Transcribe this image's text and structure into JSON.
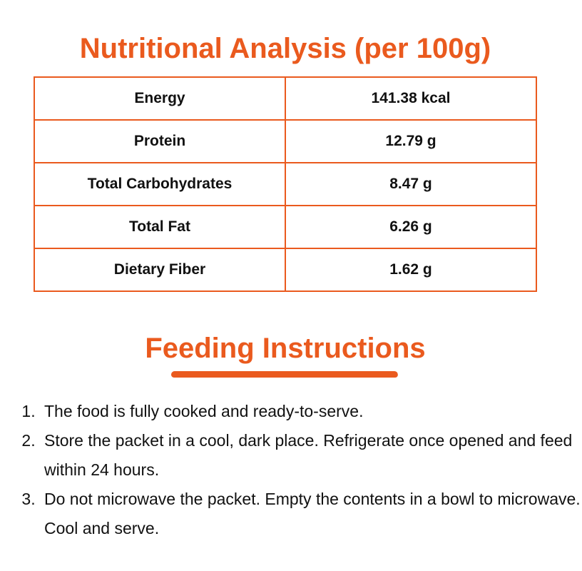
{
  "nutrition": {
    "title": "Nutritional Analysis (per 100g)",
    "rows": [
      {
        "label": "Energy",
        "value": "141.38 kcal"
      },
      {
        "label": "Protein",
        "value": "12.79 g"
      },
      {
        "label": "Total Carbohydrates",
        "value": "8.47 g"
      },
      {
        "label": "Total Fat",
        "value": "6.26 g"
      },
      {
        "label": "Dietary Fiber",
        "value": "1.62 g"
      }
    ]
  },
  "feeding": {
    "title": "Feeding Instructions",
    "items": [
      "The food is fully cooked and ready-to-serve.",
      "Store the packet in a cool, dark place. Refrigerate once opened and feed within 24 hours.",
      "Do not microwave the packet. Empty the contents in a bowl to microwave. Cool and serve."
    ]
  },
  "colors": {
    "accent": "#ea5a1e"
  }
}
